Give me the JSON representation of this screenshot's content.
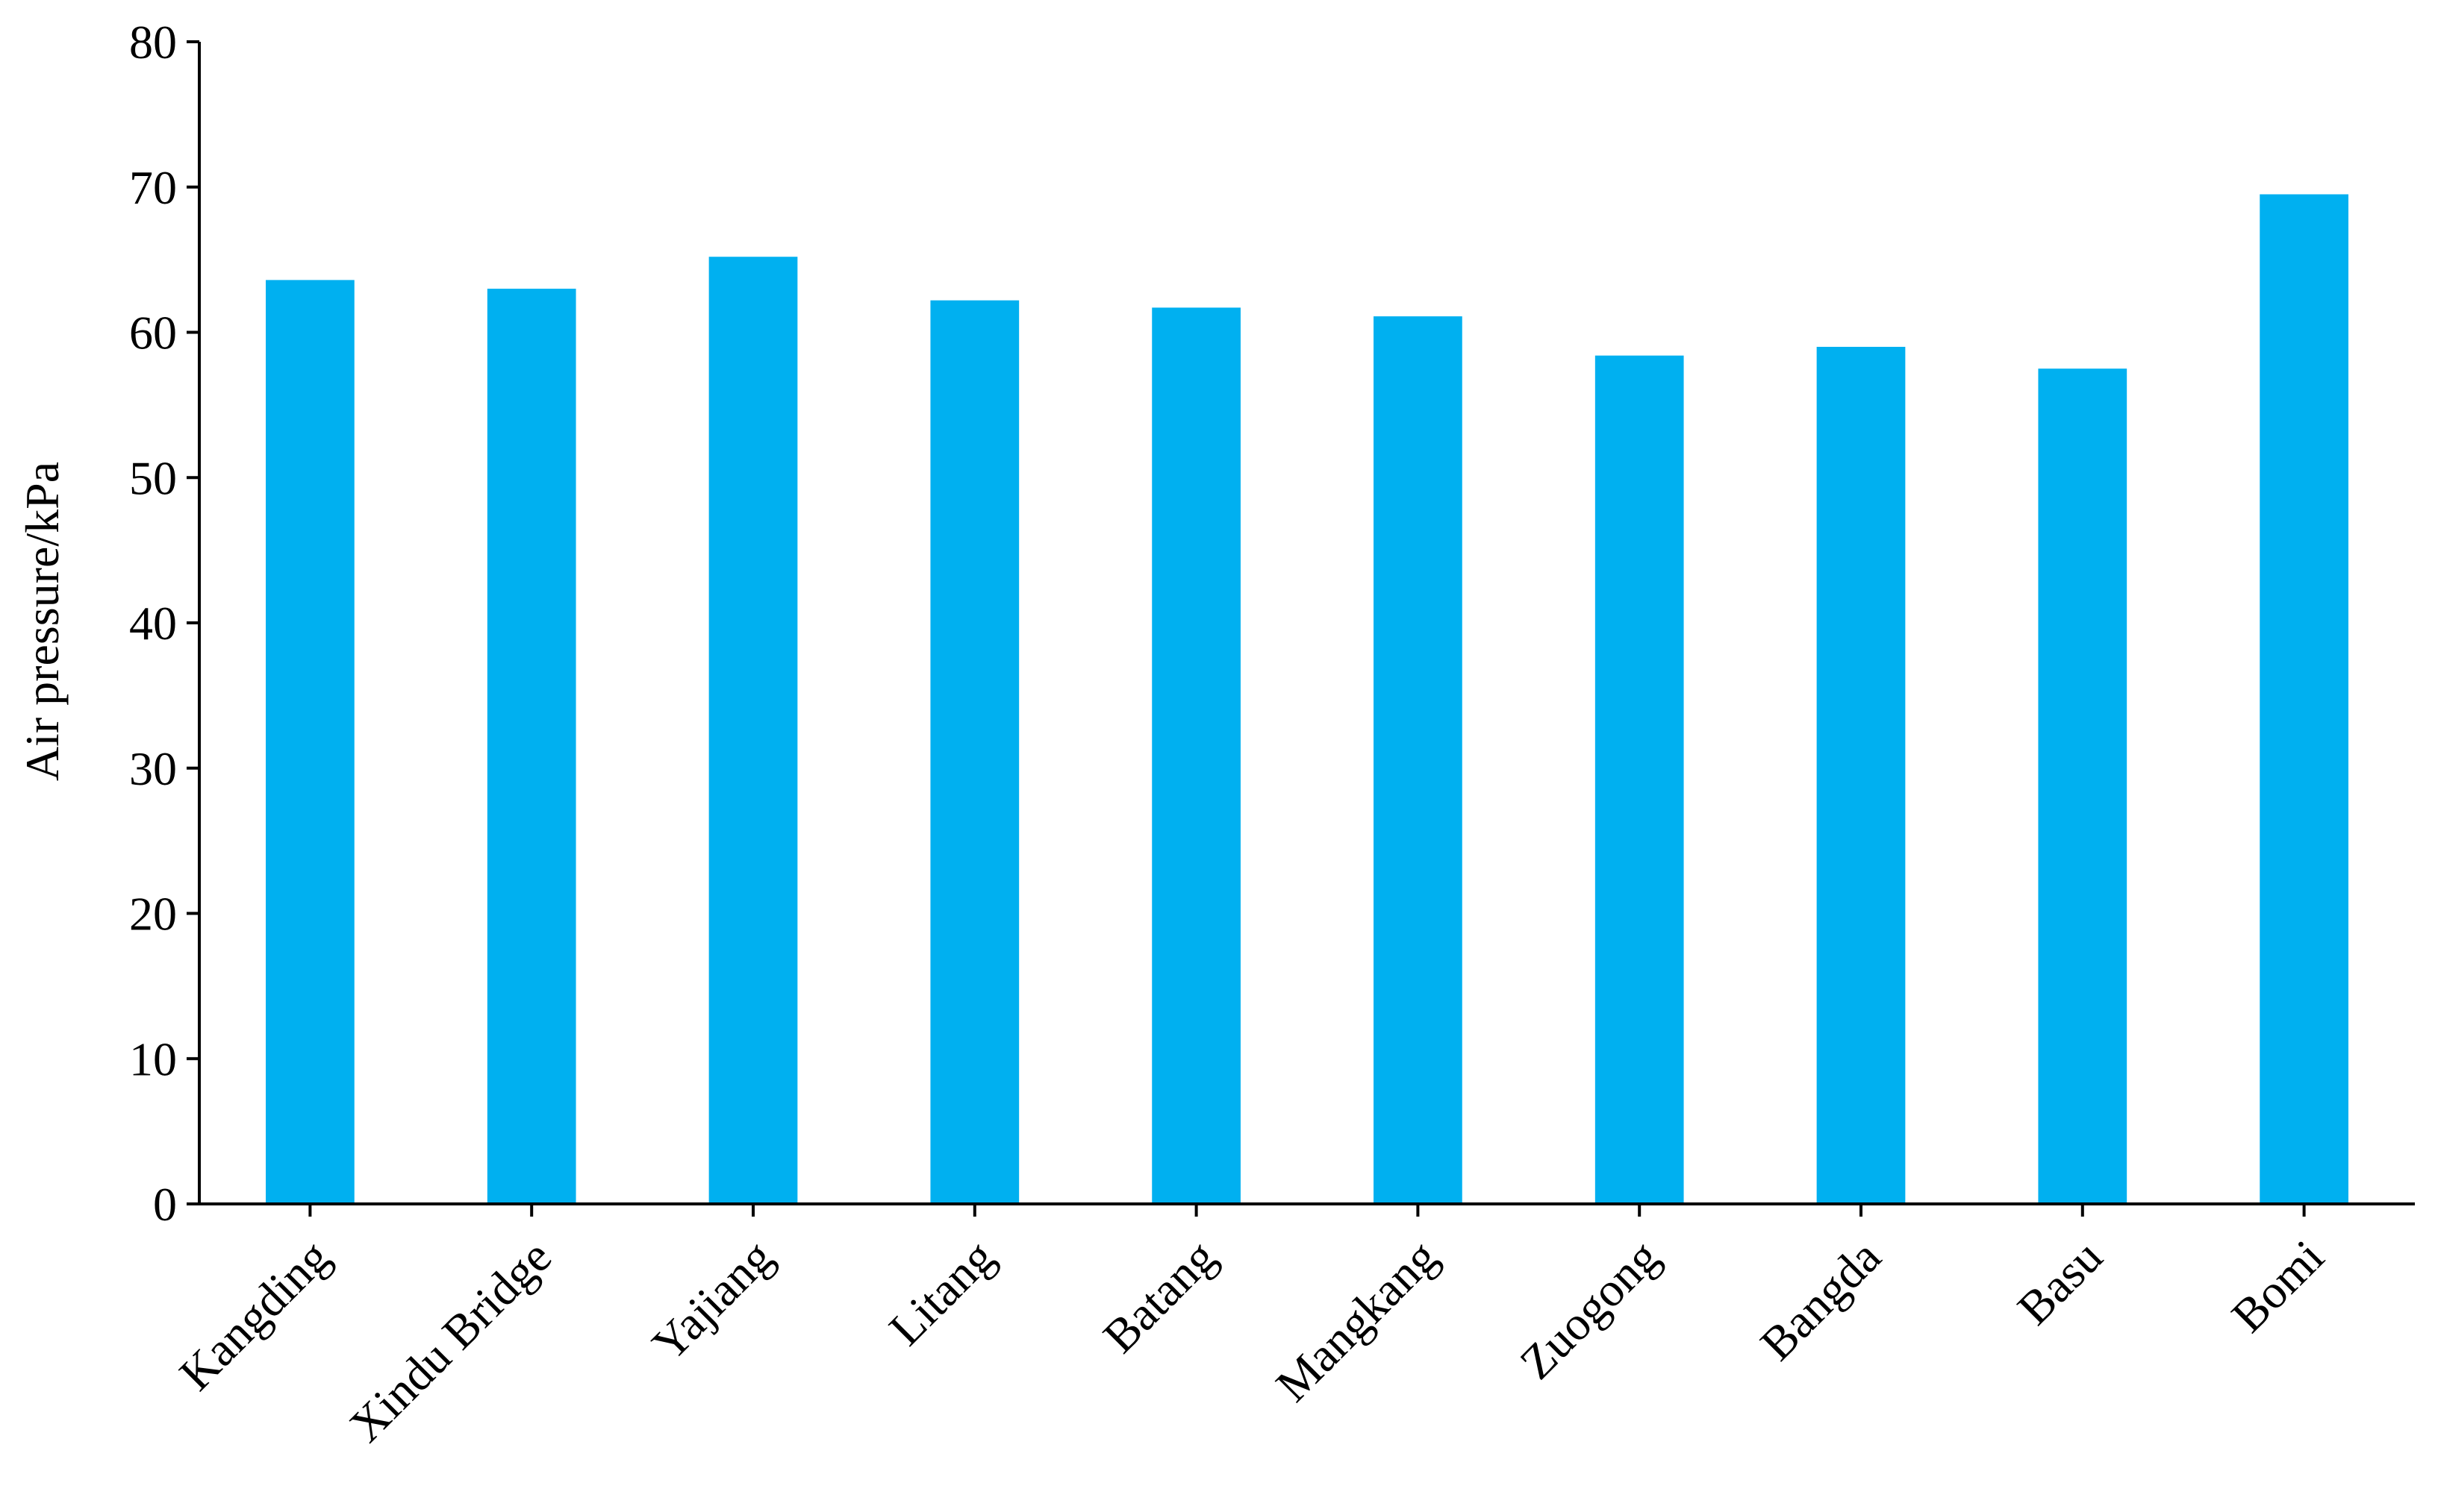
{
  "chart_data": {
    "type": "bar",
    "y_label": "Air pressure/kPa",
    "categories": [
      "Kangding",
      "Xindu Bridge",
      "Yajiang",
      "Litang",
      "Batang",
      "Mangkang",
      "Zuogong",
      "Bangda",
      "Basu",
      "Bomi"
    ],
    "values": [
      63.6,
      63.0,
      65.2,
      62.2,
      61.7,
      61.1,
      58.4,
      59.0,
      57.5,
      69.5
    ],
    "color": "#00b0f0",
    "ylim": [
      0,
      80
    ],
    "yticks": [
      0,
      10,
      20,
      30,
      40,
      50,
      60,
      70,
      80
    ],
    "grid": false
  }
}
